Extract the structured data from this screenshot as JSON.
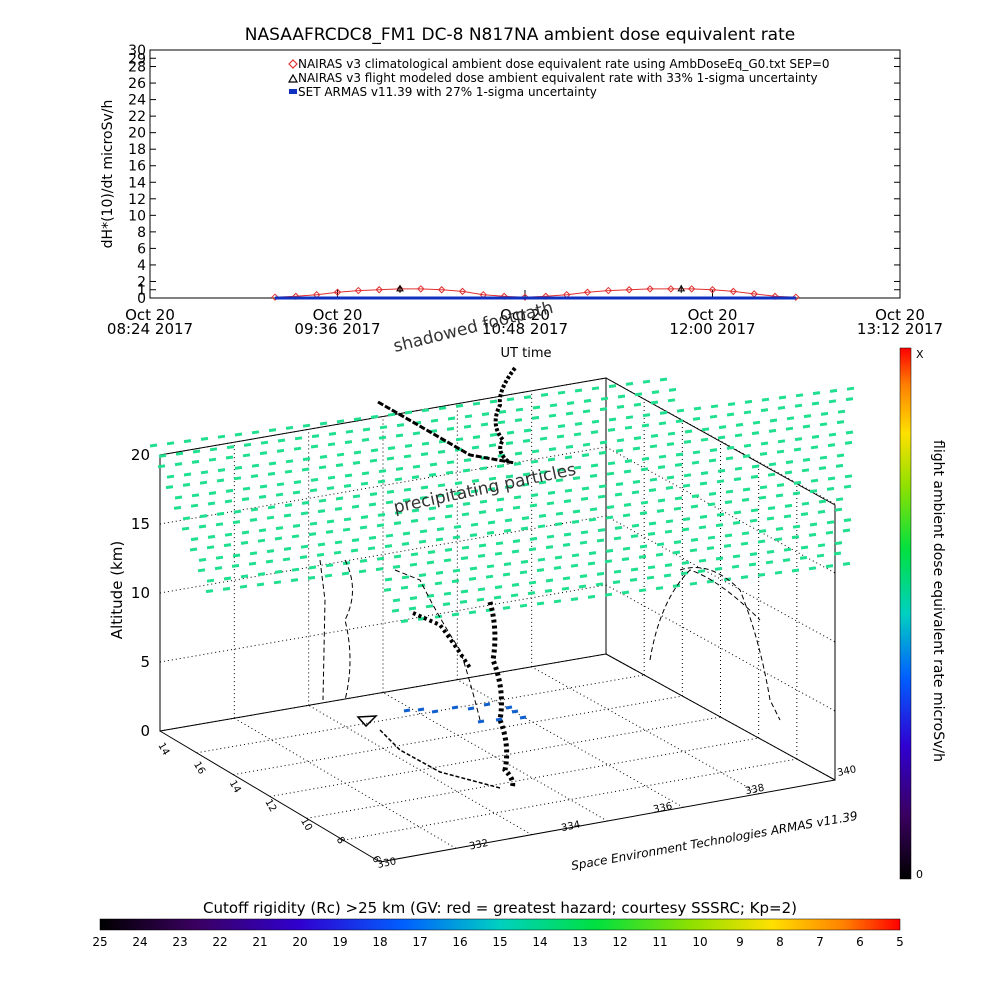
{
  "chart_data": [
    {
      "type": "line",
      "title": "NASAAFRCDC8_FM1 DC-8    N817NA ambient dose equivalent rate",
      "ylabel": "dH*(10)/dt microSv/h",
      "xlabel": "UT time",
      "ylim": [
        0,
        30
      ],
      "yticks": [
        0,
        1,
        2,
        4,
        6,
        8,
        10,
        12,
        14,
        16,
        18,
        20,
        22,
        24,
        26,
        28,
        29,
        30
      ],
      "xlim": [
        "2017-10-20T08:24",
        "2017-10-20T13:12"
      ],
      "xticks": [
        {
          "x": "2017-10-20T08:24",
          "line1": "Oct 20",
          "line2": "08:24 2017"
        },
        {
          "x": "2017-10-20T09:36",
          "line1": "Oct 20",
          "line2": "09:36 2017"
        },
        {
          "x": "2017-10-20T10:48",
          "line1": "Oct 20",
          "line2": "10:48 2017"
        },
        {
          "x": "2017-10-20T12:00",
          "line1": "Oct 20",
          "line2": "12:00 2017"
        },
        {
          "x": "2017-10-20T13:12",
          "line1": "Oct 20",
          "line2": "13:12 2017"
        }
      ],
      "legend_position": "top-right",
      "series": [
        {
          "name": "NAIRAS v3 climatological ambient dose equivalent rate using AmbDoseEq_G0.txt SEP=0",
          "color": "#e03030",
          "marker": "diamond",
          "x": [
            "2017-10-20T09:12",
            "2017-10-20T09:20",
            "2017-10-20T09:28",
            "2017-10-20T09:36",
            "2017-10-20T09:44",
            "2017-10-20T09:52",
            "2017-10-20T10:00",
            "2017-10-20T10:08",
            "2017-10-20T10:16",
            "2017-10-20T10:24",
            "2017-10-20T10:32",
            "2017-10-20T10:40",
            "2017-10-20T10:48",
            "2017-10-20T10:56",
            "2017-10-20T11:04",
            "2017-10-20T11:12",
            "2017-10-20T11:20",
            "2017-10-20T11:28",
            "2017-10-20T11:36",
            "2017-10-20T11:44",
            "2017-10-20T11:52",
            "2017-10-20T12:00",
            "2017-10-20T12:08",
            "2017-10-20T12:16",
            "2017-10-20T12:24",
            "2017-10-20T12:32"
          ],
          "values": [
            0.1,
            0.2,
            0.4,
            0.7,
            0.9,
            1.0,
            1.1,
            1.1,
            1.0,
            0.8,
            0.4,
            0.2,
            0.1,
            0.2,
            0.4,
            0.7,
            0.9,
            1.0,
            1.1,
            1.1,
            1.1,
            1.0,
            0.8,
            0.5,
            0.2,
            0.1
          ]
        },
        {
          "name": "NAIRAS v3 flight modeled dose ambient equivalent rate with 33% 1-sigma uncertainty",
          "color": "#000000",
          "marker": "triangle",
          "points": [
            {
              "x": "2017-10-20T10:00",
              "y": 1.1
            },
            {
              "x": "2017-10-20T11:48",
              "y": 1.1
            }
          ]
        },
        {
          "name": "SET ARMAS v11.39 with 27% 1-sigma uncertainty",
          "color": "#1030c0",
          "marker": "square",
          "x": [
            "2017-10-20T09:12",
            "2017-10-20T12:32"
          ],
          "values": [
            0.0,
            0.0
          ]
        }
      ]
    },
    {
      "type": "scatter",
      "zlabel": "Altitude (km)",
      "zticks": [
        0,
        5,
        10,
        15,
        20
      ],
      "lat_ticks": [
        6,
        8,
        10,
        12,
        14,
        16,
        18
      ],
      "lon_ticks": [
        330,
        332,
        334,
        336,
        338,
        340
      ],
      "annotations": [
        "shadowed footpath",
        "precipitating particles"
      ],
      "credit": "Space Environment Technologies ARMAS v11.39",
      "colorbar": {
        "label": "flight ambient dose equivalent rate microSv/h",
        "min_label": "0",
        "max_label": "X"
      }
    },
    {
      "type": "heatmap",
      "title": "Cutoff rigidity (Rc) >25 km (GV: red = greatest hazard; courtesy SSSRC; Kp=2)",
      "ticks": [
        25,
        24,
        23,
        22,
        21,
        20,
        19,
        18,
        17,
        16,
        15,
        14,
        13,
        12,
        11,
        10,
        9,
        8,
        7,
        6,
        5
      ]
    }
  ]
}
